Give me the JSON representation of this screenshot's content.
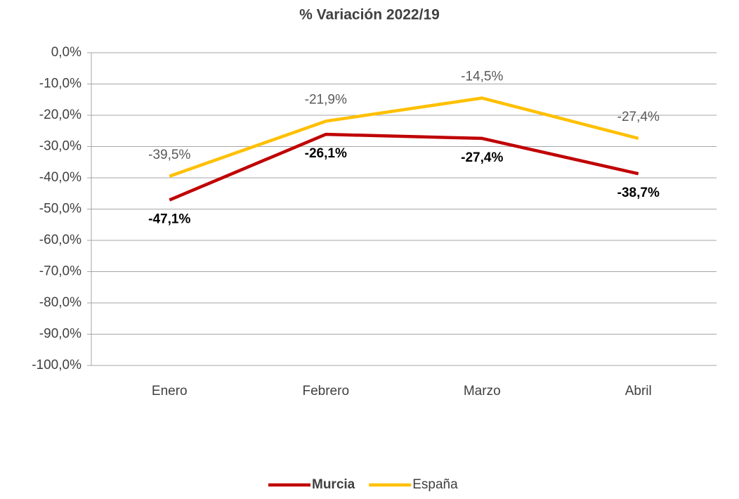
{
  "chart_data": {
    "type": "line",
    "title": "% Variación 2022/19",
    "categories": [
      "Enero",
      "Febrero",
      "Marzo",
      "Abril"
    ],
    "series": [
      {
        "name": "Murcia",
        "color": "#c00000",
        "values": [
          -47.1,
          -26.1,
          -27.4,
          -38.7
        ],
        "value_labels": [
          "-47,1%",
          "-26,1%",
          "-27,4%",
          "-38,7%"
        ]
      },
      {
        "name": "España",
        "color": "#ffc000",
        "values": [
          -39.5,
          -21.9,
          -14.5,
          -27.4
        ],
        "value_labels": [
          "-39,5%",
          "-21,9%",
          "-14,5%",
          "-27,4%"
        ]
      }
    ],
    "ylim": [
      -100,
      0
    ],
    "yticks": [
      {
        "value": 0,
        "label": "0,0%"
      },
      {
        "value": -10,
        "label": "-10,0%"
      },
      {
        "value": -20,
        "label": "-20,0%"
      },
      {
        "value": -30,
        "label": "-30,0%"
      },
      {
        "value": -40,
        "label": "-40,0%"
      },
      {
        "value": -50,
        "label": "-50,0%"
      },
      {
        "value": -60,
        "label": "-60,0%"
      },
      {
        "value": -70,
        "label": "-70,0%"
      },
      {
        "value": -80,
        "label": "-80,0%"
      },
      {
        "value": -90,
        "label": "-90,0%"
      },
      {
        "value": -100,
        "label": "-100,0%"
      }
    ],
    "grid": true,
    "legend": "bottom"
  }
}
